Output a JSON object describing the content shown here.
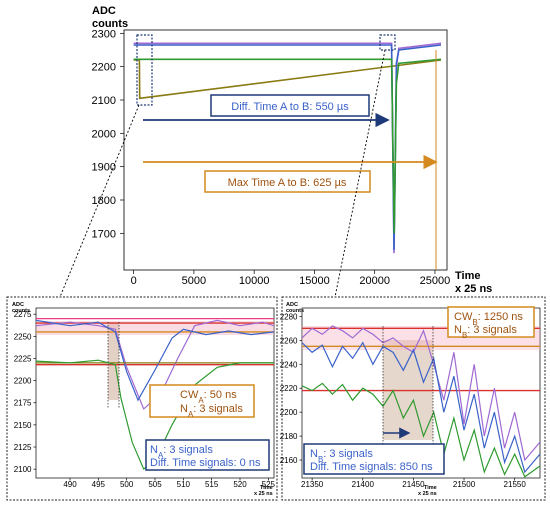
{
  "colors": {
    "blue": "#3a62c9",
    "purple": "#a06ad2",
    "pink": "#ee3b86",
    "green": "#2f9a2f",
    "olive": "#8a7a12",
    "red": "#d9312e",
    "orange": "#d48a1e",
    "navy": "#1f3a78",
    "shade_pink": "#f5b3c4",
    "shade_brown": "#b88c6e"
  },
  "chart_data": [
    {
      "id": "main",
      "type": "line",
      "ylabel": "ADC\ncounts",
      "xlabel": "Time\nx 25 ns",
      "xlim": [
        -800,
        26000
      ],
      "ylim": [
        1590,
        2310
      ],
      "xticks": [
        0,
        5000,
        10000,
        15000,
        20000,
        25000
      ],
      "yticks": [
        1700,
        1800,
        1900,
        2000,
        2100,
        2200,
        2300
      ],
      "series": [
        {
          "color": "#8a7a12",
          "baseline": 2220,
          "x": [
            0,
            200,
            480,
            500,
            25500
          ],
          "y": [
            2220,
            2220,
            2220,
            2105,
            2220
          ]
        },
        {
          "color": "#a06ad2",
          "baseline": 2270,
          "x": [
            0,
            21400,
            21600,
            21700,
            21800,
            22000,
            25500
          ],
          "y": [
            2270,
            2270,
            1640,
            1880,
            2200,
            2255,
            2270
          ]
        },
        {
          "color": "#3a62c9",
          "baseline": 2265,
          "x": [
            0,
            21400,
            21600,
            21700,
            21800,
            22000,
            25500
          ],
          "y": [
            2265,
            2265,
            1650,
            1930,
            2210,
            2250,
            2265
          ]
        },
        {
          "color": "#2f9a2f",
          "baseline": 2222,
          "x": [
            0,
            21400,
            21620,
            21800,
            22000,
            25500
          ],
          "y": [
            2222,
            2222,
            1700,
            2150,
            2210,
            2222
          ]
        }
      ],
      "annotations": [
        {
          "text": "Diff. Time A to B: 550 µs"
        },
        {
          "text": "Max Time A to B: 625 µs"
        }
      ]
    },
    {
      "id": "inset_a",
      "type": "line",
      "ylabel": "ADC\ncounts",
      "xlabel": "Time\nx 25 ns",
      "xlim": [
        484,
        526
      ],
      "ylim": [
        2090,
        2282
      ],
      "xticks": [
        490,
        495,
        500,
        505,
        510,
        515,
        520,
        525
      ],
      "yticks": [
        2100,
        2125,
        2150,
        2175,
        2200,
        2225,
        2250,
        2275
      ],
      "series": [
        {
          "color": "#a06ad2",
          "x": [
            484,
            490,
            495,
            498,
            500,
            503,
            506,
            509,
            512,
            516,
            520,
            524,
            526
          ],
          "y": [
            2262,
            2266,
            2262,
            2258,
            2215,
            2168,
            2185,
            2225,
            2262,
            2268,
            2262,
            2266,
            2262
          ]
        },
        {
          "color": "#3a62c9",
          "x": [
            484,
            490,
            495,
            498,
            500,
            502,
            505,
            508,
            510,
            514,
            518,
            522,
            526
          ],
          "y": [
            2268,
            2262,
            2266,
            2255,
            2210,
            2178,
            2212,
            2248,
            2258,
            2252,
            2256,
            2252,
            2255
          ]
        },
        {
          "color": "#ee3b86",
          "x": [
            484,
            526
          ],
          "y": [
            2270,
            2270
          ]
        },
        {
          "color": "#8a7a12",
          "x": [
            484,
            498,
            500,
            526
          ],
          "y": [
            2220,
            2220,
            2220,
            2220
          ]
        },
        {
          "color": "#2f9a2f",
          "x": [
            484,
            490,
            495,
            498,
            499,
            501,
            503,
            505,
            508,
            512,
            516,
            520,
            526
          ],
          "y": [
            2222,
            2220,
            2223,
            2218,
            2180,
            2130,
            2100,
            2110,
            2150,
            2195,
            2215,
            2220,
            2220
          ]
        }
      ],
      "hlines": [
        {
          "color": "#d48a1e",
          "y": 2255
        },
        {
          "color": "#d9312e",
          "y": 2218
        },
        {
          "color": "#d9312e",
          "y": 2265
        }
      ],
      "annotations": [
        {
          "text": "CW",
          "sub": "A",
          "rest": ": 50 ns"
        },
        {
          "text": "N",
          "sub": "A",
          "rest": ": 3 signals"
        },
        {
          "text": "N",
          "sub": "A",
          "rest": ": 3 signals"
        },
        {
          "text": "Diff. Time signals: 0 ns"
        }
      ]
    },
    {
      "id": "inset_b",
      "type": "line",
      "ylabel": "ADC\ncounts",
      "xlabel": "Time\nx 25 ns",
      "xlim": [
        21340,
        21575
      ],
      "ylim": [
        2145,
        2287
      ],
      "xticks": [
        21350,
        21400,
        21450,
        21500,
        21550
      ],
      "yticks": [
        2160,
        2180,
        2200,
        2220,
        2240,
        2260,
        2280
      ],
      "series": [
        {
          "color": "#a06ad2",
          "x": [
            21340,
            21350,
            21360,
            21370,
            21380,
            21390,
            21400,
            21410,
            21420,
            21430,
            21440,
            21450,
            21460,
            21470,
            21480,
            21490,
            21500,
            21510,
            21520,
            21530,
            21540,
            21550,
            21560,
            21575
          ],
          "y": [
            2262,
            2270,
            2265,
            2272,
            2268,
            2262,
            2270,
            2265,
            2258,
            2262,
            2255,
            2250,
            2268,
            2240,
            2210,
            2250,
            2190,
            2240,
            2180,
            2220,
            2170,
            2200,
            2160,
            2175
          ]
        },
        {
          "color": "#3a62c9",
          "x": [
            21340,
            21350,
            21360,
            21370,
            21380,
            21390,
            21400,
            21410,
            21420,
            21430,
            21440,
            21450,
            21460,
            21470,
            21480,
            21490,
            21500,
            21510,
            21520,
            21530,
            21540,
            21550,
            21560,
            21575
          ],
          "y": [
            2258,
            2250,
            2256,
            2238,
            2255,
            2245,
            2258,
            2240,
            2255,
            2250,
            2235,
            2252,
            2225,
            2245,
            2200,
            2230,
            2185,
            2215,
            2170,
            2200,
            2158,
            2180,
            2150,
            2165
          ]
        },
        {
          "color": "#2f9a2f",
          "x": [
            21340,
            21350,
            21360,
            21370,
            21380,
            21390,
            21400,
            21410,
            21420,
            21430,
            21440,
            21450,
            21460,
            21470,
            21480,
            21490,
            21500,
            21510,
            21520,
            21530,
            21540,
            21550,
            21560,
            21575
          ],
          "y": [
            2222,
            2218,
            2224,
            2215,
            2223,
            2210,
            2220,
            2215,
            2205,
            2218,
            2195,
            2210,
            2180,
            2200,
            2165,
            2195,
            2160,
            2185,
            2150,
            2170,
            2148,
            2165,
            2146,
            2155
          ]
        }
      ],
      "hlines": [
        {
          "color": "#d48a1e",
          "y": 2255
        },
        {
          "color": "#d9312e",
          "y": 2218
        },
        {
          "color": "#d9312e",
          "y": 2270
        }
      ],
      "annotations": [
        {
          "text": "CW",
          "sub": "B",
          "rest": ": 1250 ns"
        },
        {
          "text": "N",
          "sub": "B",
          "rest": ": 3 signals"
        },
        {
          "text": "N",
          "sub": "B",
          "rest": ": 3 signals"
        },
        {
          "text": "Diff. Time signals: 850 ns"
        }
      ]
    }
  ]
}
